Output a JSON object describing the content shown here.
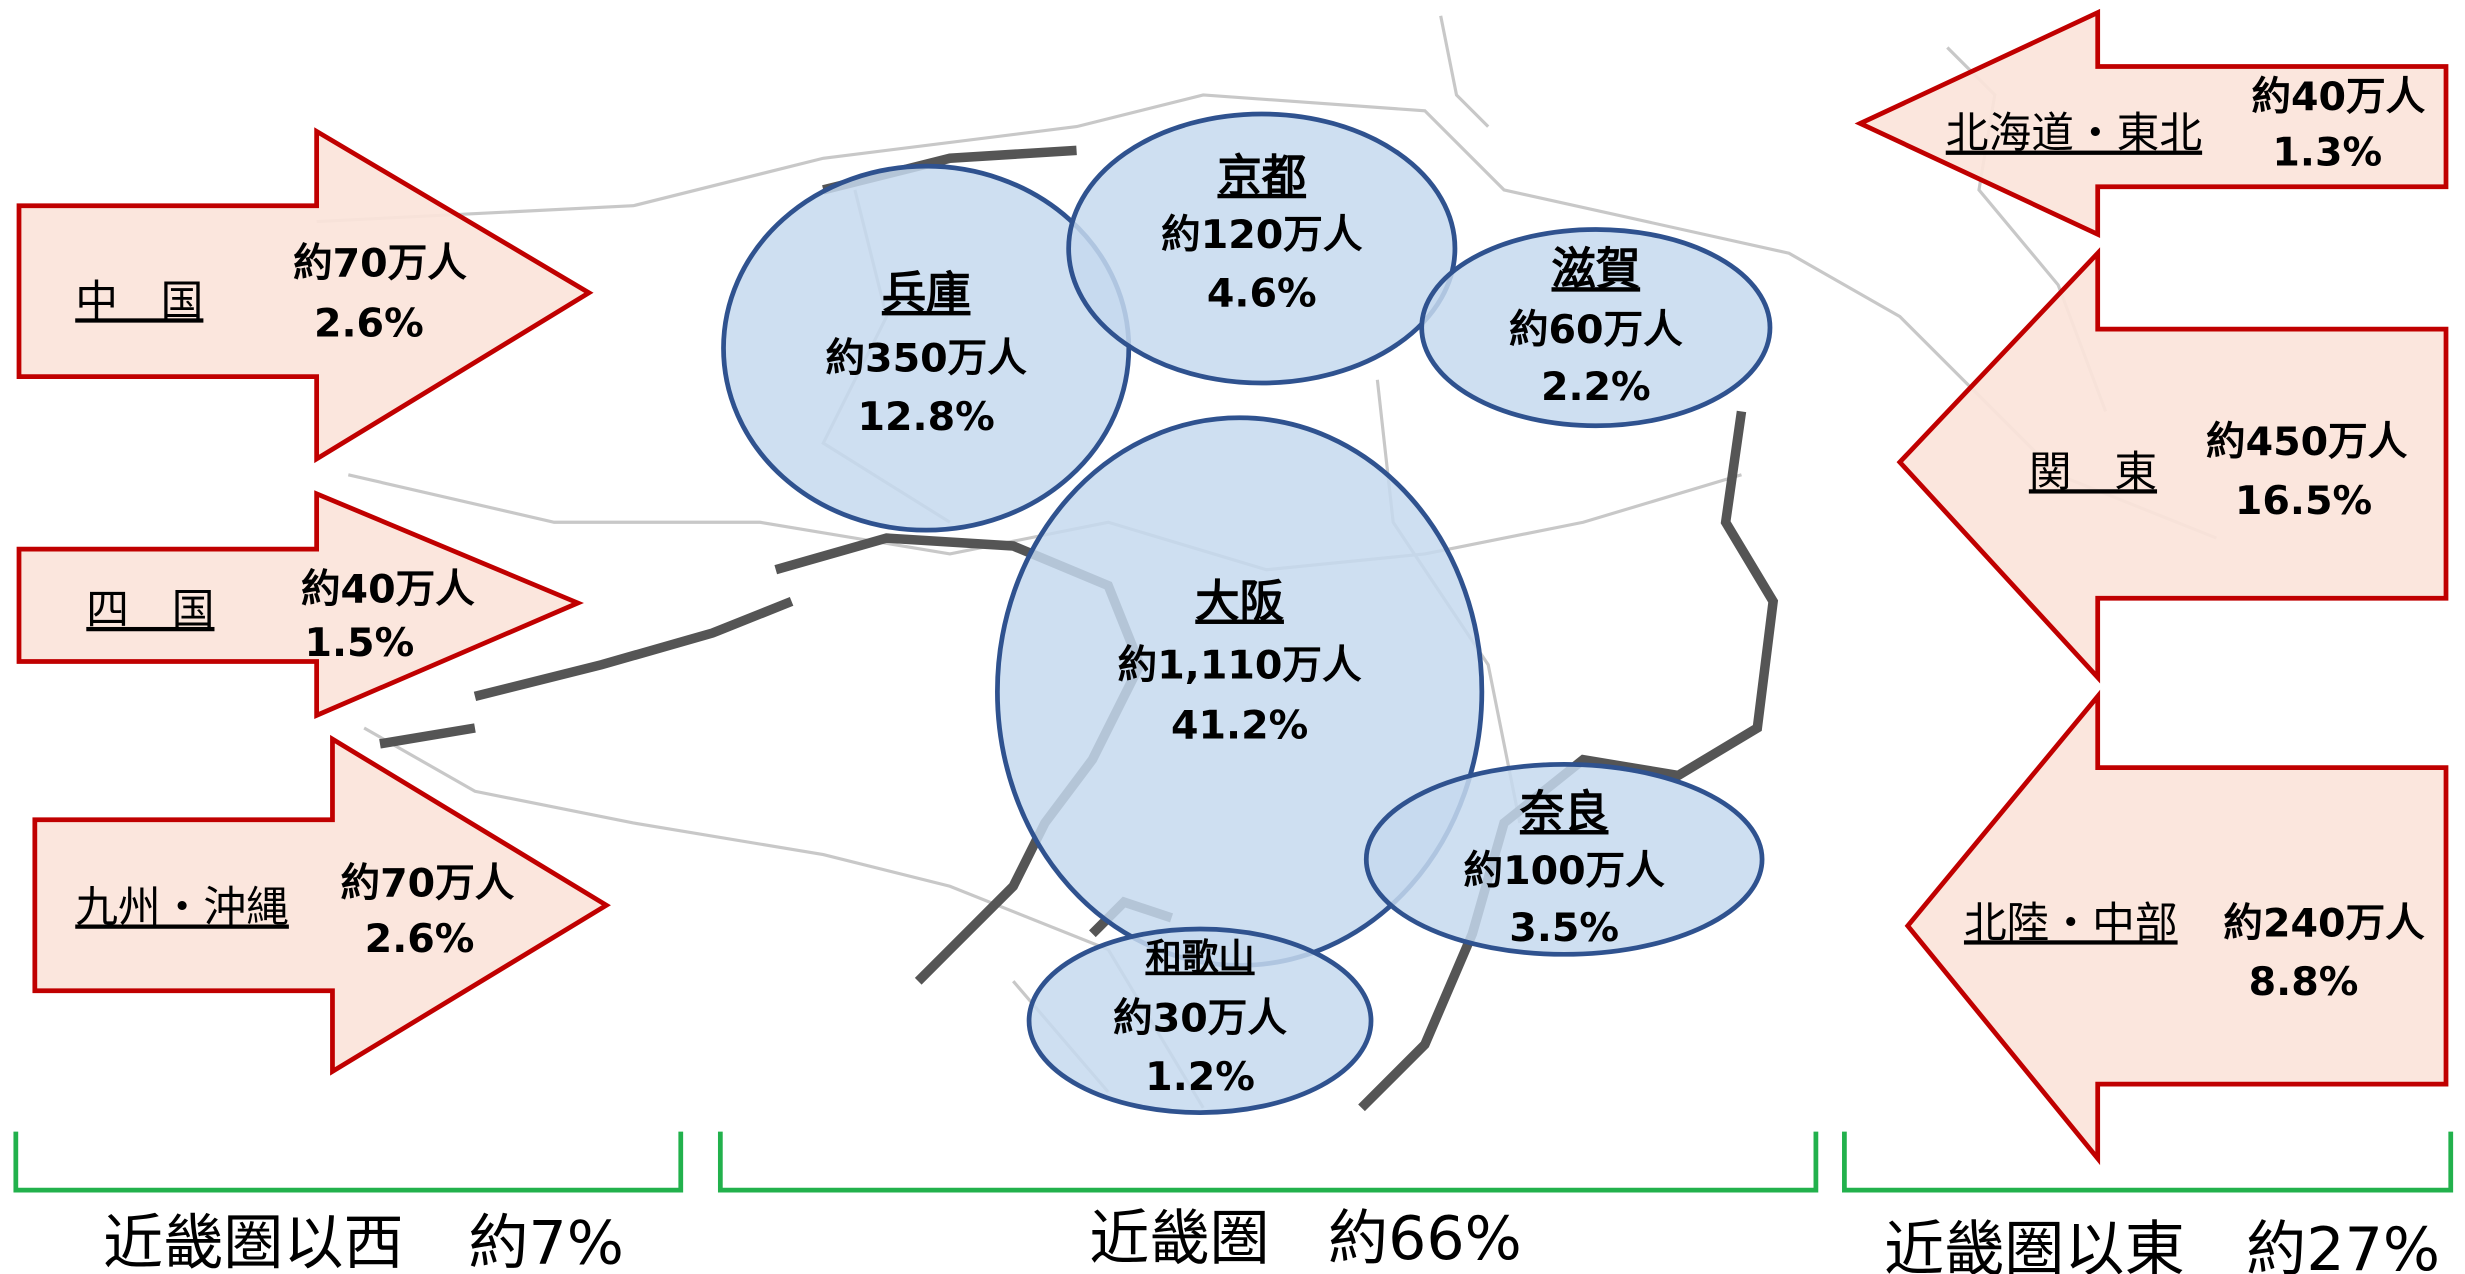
{
  "west": {
    "label": "近畿圏以西",
    "total": "約7%",
    "regions": [
      {
        "name": "中　国",
        "count": "約70万人",
        "share": "2.6%"
      },
      {
        "name": "四　国",
        "count": "約40万人",
        "share": "1.5%"
      },
      {
        "name": "九州・沖縄",
        "count": "約70万人",
        "share": "2.6%"
      }
    ]
  },
  "kinki": {
    "label": "近畿圏",
    "total": "約66%",
    "regions": [
      {
        "name": "兵庫",
        "count": "約350万人",
        "share": "12.8%"
      },
      {
        "name": "京都",
        "count": "約120万人",
        "share": "4.6%"
      },
      {
        "name": "滋賀",
        "count": "約60万人",
        "share": "2.2%"
      },
      {
        "name": "大阪",
        "count": "約1,110万人",
        "share": "41.2%"
      },
      {
        "name": "奈良",
        "count": "約100万人",
        "share": "3.5%"
      },
      {
        "name": "和歌山",
        "count": "約30万人",
        "share": "1.2%"
      }
    ]
  },
  "east": {
    "label": "近畿圏以東",
    "total": "約27%",
    "regions": [
      {
        "name": "北海道・東北",
        "count": "約40万人",
        "share": "1.3%"
      },
      {
        "name": "関　東",
        "count": "約450万人",
        "share": "16.5%"
      },
      {
        "name": "北陸・中部",
        "count": "約240万人",
        "share": "8.8%"
      }
    ]
  }
}
